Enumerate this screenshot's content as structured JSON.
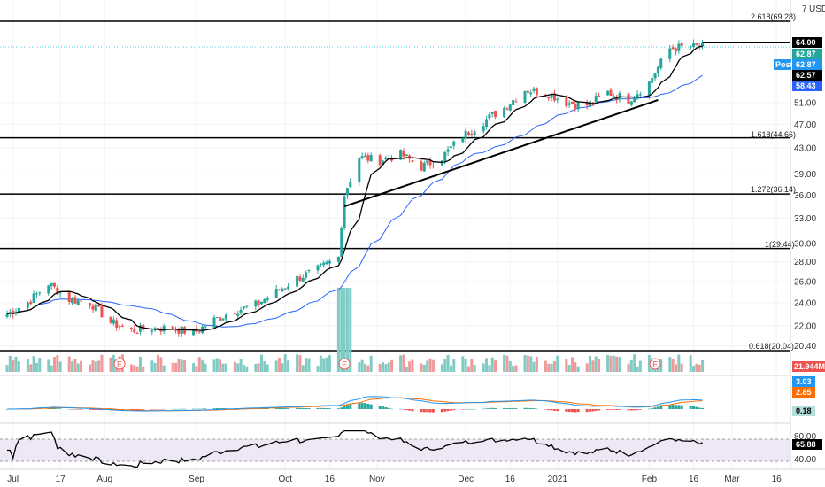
{
  "axis": {
    "currency": "USD",
    "price_ticks": [
      "51.00",
      "47.00",
      "43.00",
      "39.00",
      "36.00",
      "33.00",
      "30.00",
      "28.00",
      "26.00",
      "24.00",
      "22.00",
      "20.40"
    ],
    "date_ticks": [
      "Jul",
      "17",
      "Aug",
      "Sep",
      "Oct",
      "16",
      "Nov",
      "Dec",
      "16",
      "2021",
      "Feb",
      "16",
      "Mar",
      "16"
    ],
    "top_tick": "7",
    "rsi_ticks": [
      "80.00",
      "40.00"
    ]
  },
  "price_tags": {
    "high": "64.00",
    "close": "62.87",
    "post_label": "Post",
    "post": "62.87",
    "ma_fast": "62.57",
    "ma_slow": "58.43"
  },
  "fib_labels": [
    "2.618(69.28)",
    "1.618(44.66)",
    "1.272(36.14)",
    "1(29.44)",
    "0.618(20.04)"
  ],
  "volume": {
    "value": "21.944M",
    "earnings_marker": "E"
  },
  "macd": {
    "macd": "3.03",
    "signal": "2.85",
    "hist": "0.18"
  },
  "rsi": {
    "value": "65.88"
  },
  "colors": {
    "up": "#26a69a",
    "down": "#ef5350",
    "ma_fast": "#000000",
    "ma_slow": "#2962ff",
    "macd_line": "#2196f3",
    "signal_line": "#ff6d00",
    "rsi_band": "#ede7f6",
    "post_tag": "#2196f3",
    "close_tag": "#26a69a",
    "volume_tag": "#ef5350",
    "macd_tag": "#2196f3",
    "signal_tag": "#ff6d00",
    "hist_tag": "#b2dfdb",
    "rsi_tag": "#000000"
  },
  "chart_data": {
    "type": "candlestick",
    "ticker_currency": "USD",
    "price_scale": "log",
    "x_range": [
      "2020-06-29",
      "2021-03-22"
    ],
    "fib_levels": [
      {
        "ratio": "2.618",
        "price": 69.28
      },
      {
        "ratio": "1.618",
        "price": 44.66
      },
      {
        "ratio": "1.272",
        "price": 36.14
      },
      {
        "ratio": "1",
        "price": 29.44
      },
      {
        "ratio": "0.618",
        "price": 20.04
      }
    ],
    "resistance_level": 64.0,
    "trendline": [
      {
        "date": "2020-10-21",
        "price": 34.5
      },
      {
        "date": "2021-02-04",
        "price": 51.5
      }
    ],
    "daily_closes": [
      {
        "date": "2020-06-29",
        "close": 23.0
      },
      {
        "date": "2020-07-06",
        "close": 24.0
      },
      {
        "date": "2020-07-13",
        "close": 25.8
      },
      {
        "date": "2020-07-20",
        "close": 24.3
      },
      {
        "date": "2020-07-27",
        "close": 24.0
      },
      {
        "date": "2020-08-03",
        "close": 22.3
      },
      {
        "date": "2020-08-10",
        "close": 21.6
      },
      {
        "date": "2020-08-17",
        "close": 21.8
      },
      {
        "date": "2020-08-24",
        "close": 21.8
      },
      {
        "date": "2020-08-31",
        "close": 21.4
      },
      {
        "date": "2020-09-07",
        "close": 22.5
      },
      {
        "date": "2020-09-14",
        "close": 23.3
      },
      {
        "date": "2020-09-21",
        "close": 23.8
      },
      {
        "date": "2020-09-28",
        "close": 25.0
      },
      {
        "date": "2020-10-05",
        "close": 26.3
      },
      {
        "date": "2020-10-12",
        "close": 27.2
      },
      {
        "date": "2020-10-19",
        "close": 28.5
      },
      {
        "date": "2020-10-21",
        "close": 36.1
      },
      {
        "date": "2020-10-26",
        "close": 41.5
      },
      {
        "date": "2020-11-02",
        "close": 41.0
      },
      {
        "date": "2020-11-09",
        "close": 42.0
      },
      {
        "date": "2020-11-16",
        "close": 40.0
      },
      {
        "date": "2020-11-23",
        "close": 41.5
      },
      {
        "date": "2020-11-30",
        "close": 45.0
      },
      {
        "date": "2020-12-07",
        "close": 47.5
      },
      {
        "date": "2020-12-14",
        "close": 50.0
      },
      {
        "date": "2020-12-21",
        "close": 53.5
      },
      {
        "date": "2020-12-28",
        "close": 53.0
      },
      {
        "date": "2021-01-04",
        "close": 51.0
      },
      {
        "date": "2021-01-11",
        "close": 50.5
      },
      {
        "date": "2021-01-18",
        "close": 53.0
      },
      {
        "date": "2021-01-25",
        "close": 51.5
      },
      {
        "date": "2021-02-01",
        "close": 55.0
      },
      {
        "date": "2021-02-08",
        "close": 62.5
      },
      {
        "date": "2021-02-15",
        "close": 63.0
      },
      {
        "date": "2021-02-19",
        "close": 62.87
      }
    ],
    "volume_last": "21.944M",
    "macd_last": {
      "macd": 3.03,
      "signal": 2.85,
      "hist": 0.18
    },
    "rsi_last": 65.88,
    "rsi_band": [
      40,
      80
    ]
  }
}
